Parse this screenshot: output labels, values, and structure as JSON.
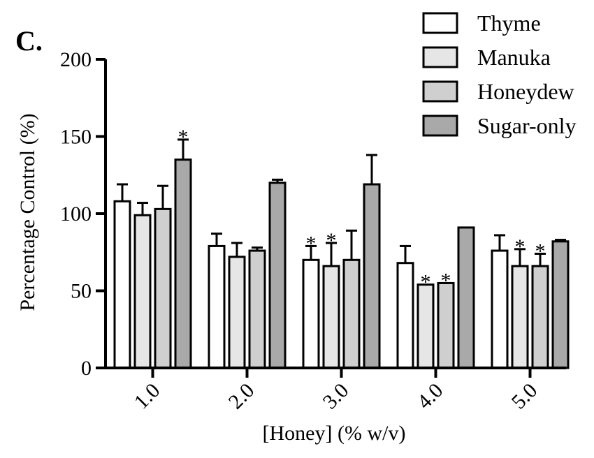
{
  "panel_label": "C.",
  "chart_data": {
    "type": "bar",
    "title": "",
    "xlabel": "[Honey] (% w/v)",
    "ylabel": "Percentage Control (%)",
    "ylim": [
      0,
      200
    ],
    "yticks": [
      0,
      50,
      100,
      150,
      200
    ],
    "categories": [
      "1.0",
      "2.0",
      "3.0",
      "4.0",
      "5.0"
    ],
    "legend_position": "top-right",
    "grid": false,
    "series": [
      {
        "name": "Thyme",
        "color": "#ffffff",
        "values": [
          108,
          79,
          70,
          68,
          76
        ],
        "errors": [
          11,
          8,
          9,
          11,
          10
        ],
        "significant": [
          false,
          false,
          true,
          false,
          false
        ]
      },
      {
        "name": "Manuka",
        "color": "#e6e6e6",
        "values": [
          99,
          72,
          66,
          54,
          66
        ],
        "errors": [
          8,
          9,
          15,
          0,
          11
        ],
        "significant": [
          false,
          false,
          true,
          true,
          true
        ]
      },
      {
        "name": "Honeydew",
        "color": "#cfcfcf",
        "values": [
          103,
          76,
          70,
          55,
          66
        ],
        "errors": [
          15,
          2,
          19,
          0,
          8
        ],
        "significant": [
          false,
          false,
          false,
          true,
          true
        ]
      },
      {
        "name": "Sugar-only",
        "color": "#a9a9a9",
        "values": [
          135,
          120,
          119,
          91,
          82
        ],
        "errors": [
          13,
          2,
          19,
          0,
          1
        ],
        "significant": [
          true,
          false,
          false,
          false,
          false
        ]
      }
    ],
    "significance_marker": "*"
  }
}
